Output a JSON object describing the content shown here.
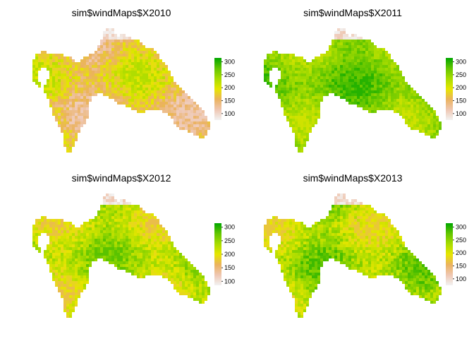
{
  "chart_data": [
    {
      "type": "heatmap",
      "title": "sim$windMaps$X2010",
      "legend": {
        "range": [
          75,
          315
        ],
        "ticks": [
          100,
          150,
          200,
          250,
          300
        ],
        "placement": "right"
      },
      "dominant_range": [
        110,
        230
      ],
      "seed": 2010
    },
    {
      "type": "heatmap",
      "title": "sim$windMaps$X2011",
      "legend": {
        "range": [
          75,
          315
        ],
        "ticks": [
          100,
          150,
          200,
          250,
          300
        ],
        "placement": "right"
      },
      "dominant_range": [
        210,
        300
      ],
      "seed": 2011
    },
    {
      "type": "heatmap",
      "title": "sim$windMaps$X2012",
      "legend": {
        "range": [
          85,
          315
        ],
        "ticks": [
          100,
          150,
          200,
          250,
          300
        ],
        "placement": "right"
      },
      "dominant_range": [
        170,
        280
      ],
      "seed": 2012
    },
    {
      "type": "heatmap",
      "title": "sim$windMaps$X2013",
      "legend": {
        "range": [
          75,
          315
        ],
        "ticks": [
          100,
          150,
          200,
          250,
          300
        ],
        "placement": "right"
      },
      "dominant_range": [
        170,
        290
      ],
      "seed": 2013
    }
  ],
  "colors": {
    "scale": [
      "#F2F2F2",
      "#EFC7B2",
      "#EBB25E",
      "#E6E600",
      "#A8DC00",
      "#63C600",
      "#00A600"
    ],
    "background": "#FFFFFF"
  },
  "grid": false
}
